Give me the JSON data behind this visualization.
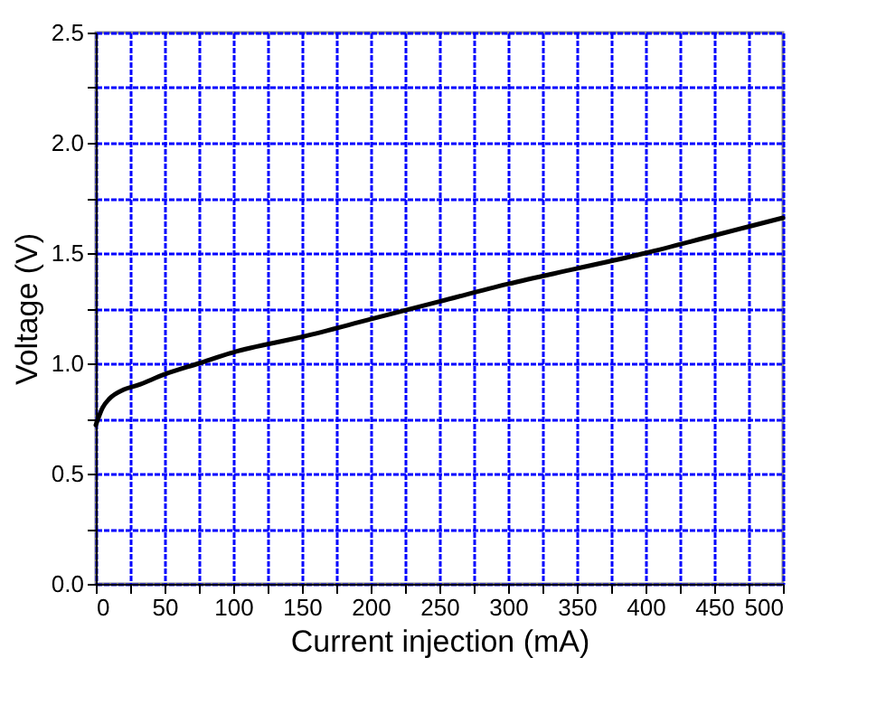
{
  "chart_data": {
    "type": "line",
    "xlabel": "Current injection (mA)",
    "ylabel": "Voltage (V)",
    "x": [
      0,
      5,
      10,
      20,
      30,
      50,
      75,
      100,
      150,
      200,
      250,
      300,
      350,
      400,
      450,
      500
    ],
    "series": [
      {
        "color": "#000000",
        "values": [
          0.72,
          0.8,
          0.84,
          0.88,
          0.9,
          0.95,
          1.0,
          1.05,
          1.12,
          1.2,
          1.28,
          1.36,
          1.43,
          1.5,
          1.58,
          1.66
        ]
      }
    ],
    "xlim": [
      0,
      500
    ],
    "ylim": [
      0,
      2.5
    ],
    "xticks": [
      0,
      {
        "value": 25,
        "label": null
      },
      50,
      {
        "value": 75,
        "label": null
      },
      100,
      {
        "value": 125,
        "label": null
      },
      150,
      {
        "value": 175,
        "label": null
      },
      200,
      {
        "value": 225,
        "label": null
      },
      250,
      {
        "value": 275,
        "label": null
      },
      300,
      {
        "value": 325,
        "label": null
      },
      350,
      {
        "value": 375,
        "label": null
      },
      400,
      {
        "value": 425,
        "label": null
      },
      450,
      {
        "value": 475,
        "label": null
      },
      500
    ],
    "yticks": [
      {
        "value": 0,
        "label": "0.0"
      },
      {
        "value": 0.25,
        "label": null
      },
      {
        "value": 0.5,
        "label": "0.5"
      },
      {
        "value": 0.75,
        "label": null
      },
      {
        "value": 1,
        "label": "1.0"
      },
      {
        "value": 1.25,
        "label": null
      },
      {
        "value": 1.5,
        "label": "1.5"
      },
      {
        "value": 1.75,
        "label": null
      },
      {
        "value": 2,
        "label": "2.0"
      },
      {
        "value": 2.25,
        "label": null
      },
      {
        "value": 2.5,
        "label": "2.5"
      }
    ],
    "grid": true,
    "marker": "none",
    "line_style": "solid"
  }
}
